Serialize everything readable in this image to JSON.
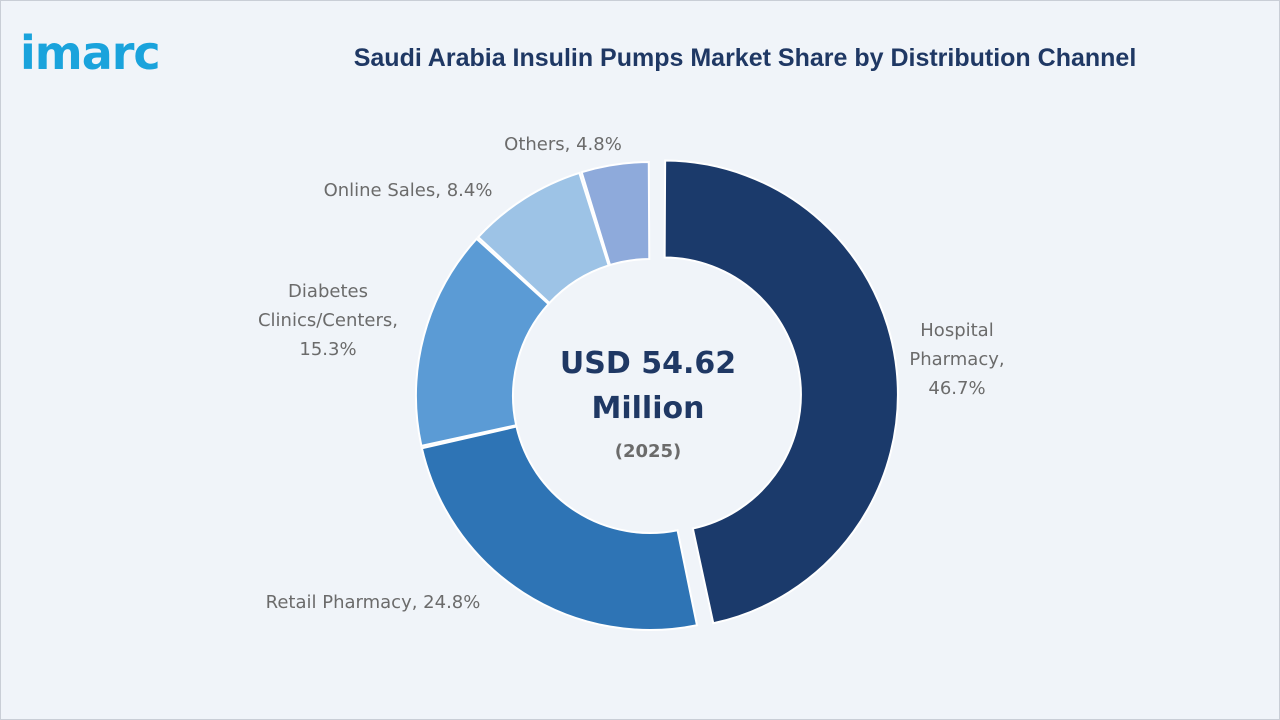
{
  "header": {
    "logo_text": "imarc",
    "title": "Saudi Arabia Insulin Pumps Market Share by Distribution Channel"
  },
  "center": {
    "line1": "USD 54.62",
    "line2": "Million",
    "year": "(2025)"
  },
  "chart_data": {
    "type": "pie",
    "style": "donut",
    "title": "Saudi Arabia Insulin Pumps Market Share by Distribution Channel",
    "categories": [
      "Hospital Pharmacy",
      "Retail Pharmacy",
      "Diabetes Clinics/Centers",
      "Online Sales",
      "Others"
    ],
    "values": [
      46.7,
      24.8,
      15.3,
      8.4,
      4.8
    ],
    "unit": "%",
    "exploded": "Hospital Pharmacy",
    "labels": [
      [
        "Hospital",
        "Pharmacy,",
        "46.7%"
      ],
      [
        "Retail Pharmacy, 24.8%"
      ],
      [
        "Diabetes",
        "Clinics/Centers,",
        "15.3%"
      ],
      [
        "Online Sales, 8.4%"
      ],
      [
        "Others, 4.8%"
      ]
    ],
    "colors": [
      "#1b3a6b",
      "#2e74b5",
      "#5b9bd5",
      "#9dc3e6",
      "#8eaadb"
    ]
  }
}
